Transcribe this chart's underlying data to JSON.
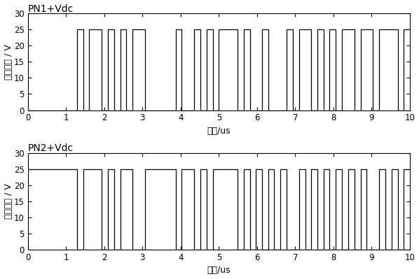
{
  "title1": "PN1+Vdc",
  "title2": "PN2+Vdc",
  "ylabel": "供电电压 / V",
  "xlabel": "时间/us",
  "ylim": [
    0,
    30
  ],
  "xlim": [
    0,
    10
  ],
  "yticks": [
    0,
    5,
    10,
    15,
    20,
    25,
    30
  ],
  "xticks": [
    0,
    1,
    2,
    3,
    4,
    5,
    6,
    7,
    8,
    9,
    10
  ],
  "high_val": 25,
  "low_val": 0,
  "pn1_transitions": [
    0.0,
    1.29,
    1.29,
    1.45,
    1.45,
    1.61,
    1.61,
    1.94,
    1.94,
    2.1,
    2.1,
    2.26,
    2.26,
    2.42,
    2.42,
    2.58,
    2.58,
    2.74,
    2.74,
    3.07,
    3.07,
    3.87,
    3.87,
    4.03,
    4.03,
    4.35,
    4.35,
    4.52,
    4.52,
    4.84,
    4.84,
    5.32,
    5.32,
    5.48,
    5.48,
    5.65,
    5.65,
    5.81,
    5.81,
    6.13,
    6.13,
    6.29,
    6.29,
    6.77,
    6.77,
    6.94,
    6.94,
    7.1,
    7.1,
    7.42,
    7.42,
    7.58,
    7.58,
    7.74,
    7.74,
    7.9,
    7.9,
    8.06,
    8.06,
    8.23,
    8.23,
    8.55,
    8.55,
    8.71,
    8.71,
    9.03,
    9.03,
    9.19,
    9.19,
    9.68,
    9.68,
    9.84,
    9.84,
    10.0
  ],
  "pn1_levels": [
    0,
    1,
    0,
    1,
    0,
    1,
    0,
    1,
    0,
    1,
    0,
    1,
    0,
    1,
    0,
    1,
    0,
    1,
    0,
    1,
    0,
    1,
    0,
    1,
    0,
    1,
    0,
    1,
    0,
    1,
    0,
    1,
    0,
    1,
    0,
    1,
    0
  ],
  "pn2_transitions": [
    0.0,
    1.29,
    1.29,
    1.45,
    1.45,
    1.94,
    1.94,
    2.1,
    2.1,
    2.26,
    2.26,
    2.42,
    2.42,
    2.74,
    2.74,
    3.07,
    3.07,
    3.87,
    3.87,
    4.03,
    4.03,
    4.35,
    4.35,
    4.68,
    4.68,
    4.84,
    4.84,
    5.32,
    5.32,
    5.65,
    5.65,
    5.81,
    5.81,
    5.97,
    5.97,
    6.29,
    6.29,
    6.45,
    6.45,
    6.61,
    6.61,
    6.77,
    6.77,
    7.1,
    7.1,
    7.26,
    7.26,
    7.42,
    7.42,
    7.58,
    7.58,
    7.74,
    7.74,
    7.9,
    7.9,
    8.06,
    8.06,
    8.23,
    8.23,
    8.55,
    8.55,
    8.71,
    8.71,
    8.87,
    8.87,
    9.19,
    9.19,
    9.35,
    9.35,
    9.52,
    9.52,
    9.68,
    9.68,
    9.84,
    9.84,
    10.0
  ],
  "pn2_levels": [
    1,
    0,
    1,
    0,
    1,
    0,
    1,
    0,
    1,
    0,
    1,
    0,
    1,
    0,
    1,
    0,
    1,
    0,
    1,
    0,
    1,
    0,
    1,
    0,
    1,
    0,
    1,
    0,
    1,
    0,
    1,
    0,
    1,
    0,
    1,
    0,
    1,
    0
  ],
  "line_color": "#000000",
  "title_fontsize": 10,
  "label_fontsize": 9,
  "tick_fontsize": 8.5
}
